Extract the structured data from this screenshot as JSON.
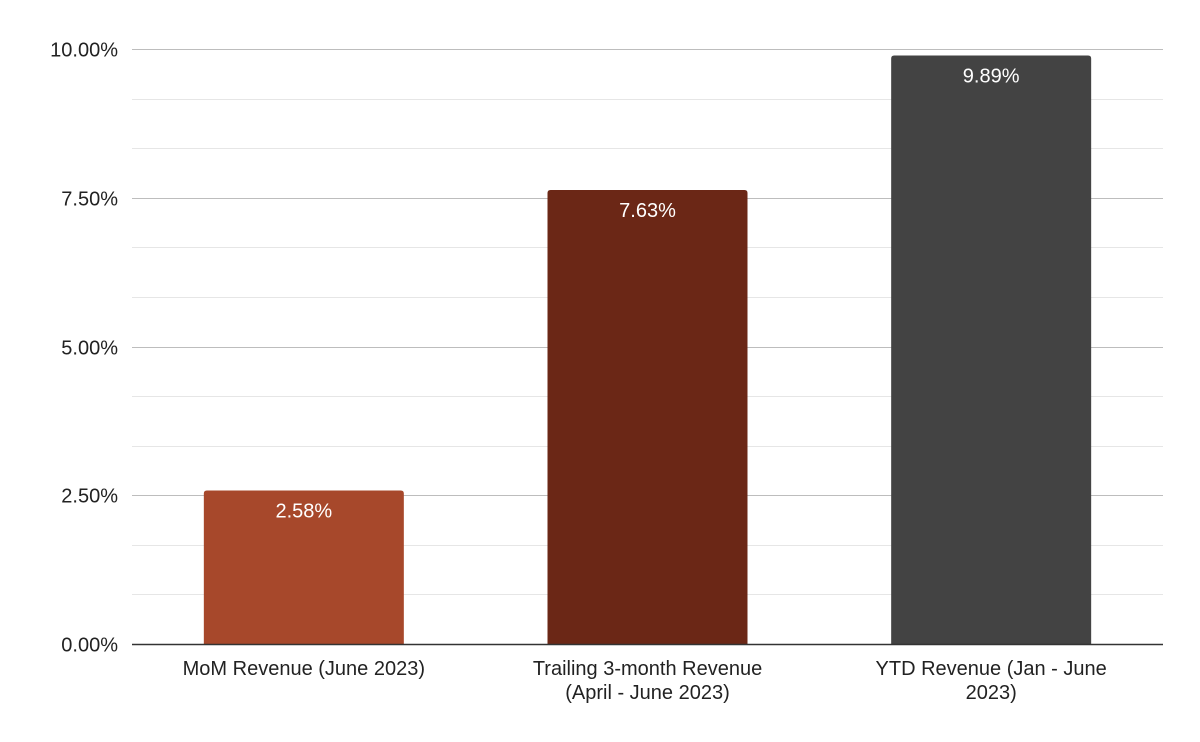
{
  "chart_data": {
    "type": "bar",
    "categories": [
      [
        "MoM Revenue (June 2023)"
      ],
      [
        "Trailing 3-month Revenue",
        "(April - June 2023)"
      ],
      [
        "YTD Revenue (Jan - June",
        "2023)"
      ]
    ],
    "values": [
      2.58,
      7.63,
      9.89
    ],
    "data_labels": [
      "2.58%",
      "7.63%",
      "9.89%"
    ],
    "bar_colors": [
      "#a7482b",
      "#6b2716",
      "#434343"
    ],
    "ylim": [
      0,
      10
    ],
    "y_ticks": [
      0,
      2.5,
      5,
      7.5,
      10
    ],
    "y_tick_labels": [
      "0.00%",
      "2.50%",
      "5.00%",
      "7.50%",
      "10.00%"
    ],
    "minor_grid": true,
    "title": "",
    "xlabel": "",
    "ylabel": "",
    "legend": "none"
  },
  "colors": {
    "major_grid": "#bdbdbd",
    "minor_grid": "#e6e6e6",
    "axis": "#333333"
  }
}
